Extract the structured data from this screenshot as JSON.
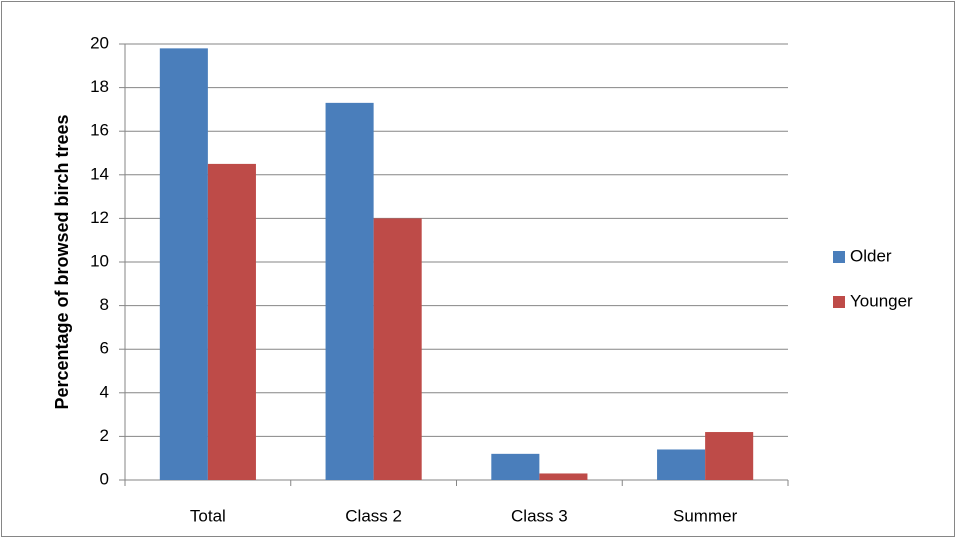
{
  "chart_data": {
    "type": "bar",
    "y_label": "Percentage of browsed birch trees",
    "categories": [
      "Total",
      "Class 2",
      "Class 3",
      "Summer"
    ],
    "series": [
      {
        "name": "Older",
        "color": "#4a7ebb",
        "values": [
          19.8,
          17.3,
          1.2,
          1.4
        ]
      },
      {
        "name": "Younger",
        "color": "#be4b48",
        "values": [
          14.5,
          12.0,
          0.3,
          2.2
        ]
      }
    ],
    "ylim": [
      0,
      20
    ],
    "yticks": [
      0,
      2,
      4,
      6,
      8,
      10,
      12,
      14,
      16,
      18,
      20
    ],
    "grid": true,
    "legend": "right"
  }
}
